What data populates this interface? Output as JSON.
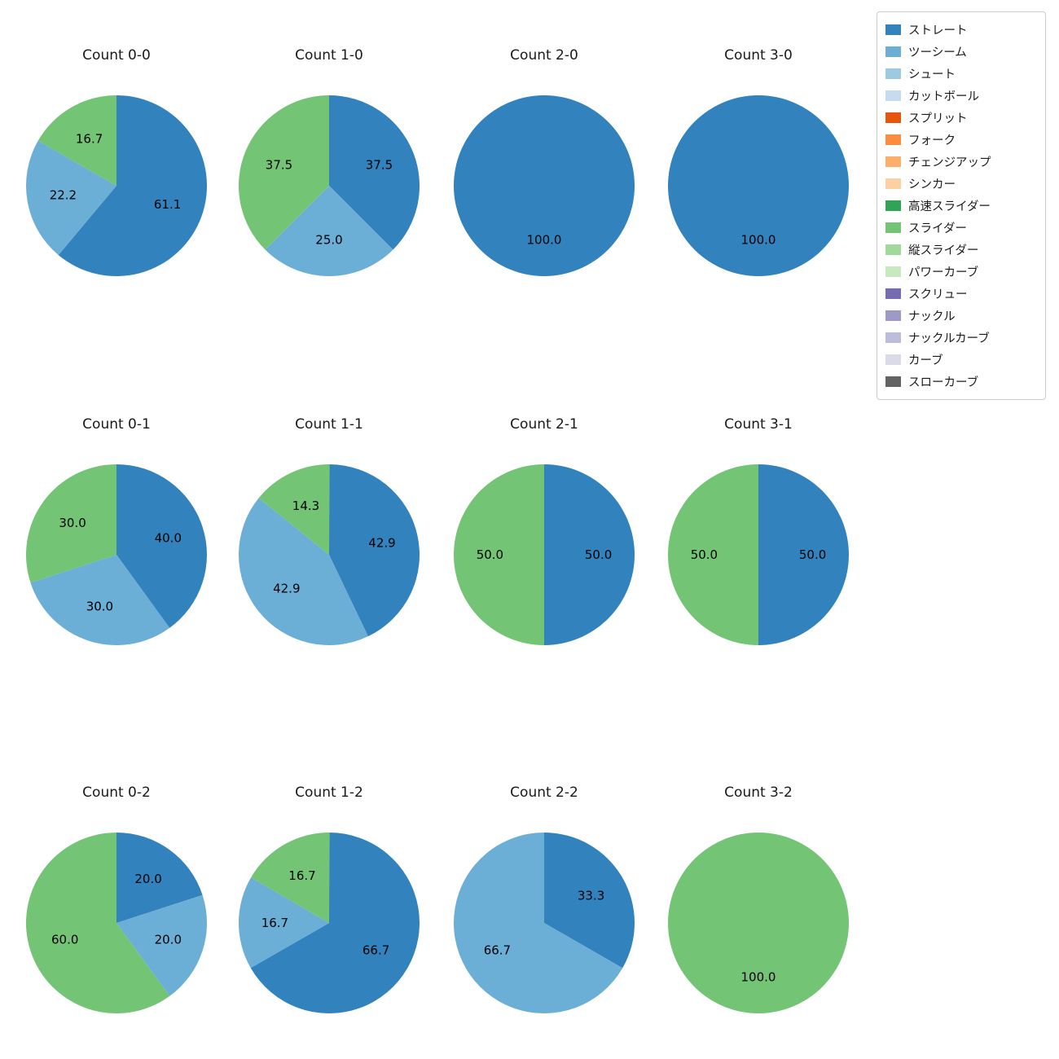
{
  "chart_data": {
    "type": "pie",
    "unit": "percent",
    "value_format": "one_decimal",
    "start_angle_deg": 90,
    "direction": "clockwise",
    "legend_position": "top-right",
    "legend": [
      {
        "label": "ストレート",
        "color": "#3182bd"
      },
      {
        "label": "ツーシーム",
        "color": "#6baed6"
      },
      {
        "label": "シュート",
        "color": "#9ecae1"
      },
      {
        "label": "カットボール",
        "color": "#c6dbef"
      },
      {
        "label": "スプリット",
        "color": "#e6550d"
      },
      {
        "label": "フォーク",
        "color": "#fd8d3c"
      },
      {
        "label": "チェンジアップ",
        "color": "#fdae6b"
      },
      {
        "label": "シンカー",
        "color": "#fdd0a2"
      },
      {
        "label": "高速スライダー",
        "color": "#31a354"
      },
      {
        "label": "スライダー",
        "color": "#74c476"
      },
      {
        "label": "縦スライダー",
        "color": "#a1d99b"
      },
      {
        "label": "パワーカーブ",
        "color": "#c7e9c0"
      },
      {
        "label": "スクリュー",
        "color": "#756bb1"
      },
      {
        "label": "ナックル",
        "color": "#9e9ac8"
      },
      {
        "label": "ナックルカーブ",
        "color": "#bcbddc"
      },
      {
        "label": "カーブ",
        "color": "#dadaeb"
      },
      {
        "label": "スローカーブ",
        "color": "#636363"
      }
    ],
    "charts": [
      {
        "title": "Count 0-0",
        "slices": [
          {
            "pitch": "ストレート",
            "value": 61.1
          },
          {
            "pitch": "ツーシーム",
            "value": 22.2
          },
          {
            "pitch": "スライダー",
            "value": 16.7
          }
        ]
      },
      {
        "title": "Count 1-0",
        "slices": [
          {
            "pitch": "ストレート",
            "value": 37.5
          },
          {
            "pitch": "ツーシーム",
            "value": 25.0
          },
          {
            "pitch": "スライダー",
            "value": 37.5
          }
        ]
      },
      {
        "title": "Count 2-0",
        "slices": [
          {
            "pitch": "ストレート",
            "value": 100.0
          }
        ]
      },
      {
        "title": "Count 3-0",
        "slices": [
          {
            "pitch": "ストレート",
            "value": 100.0
          }
        ]
      },
      {
        "title": "Count 0-1",
        "slices": [
          {
            "pitch": "ストレート",
            "value": 40.0
          },
          {
            "pitch": "ツーシーム",
            "value": 30.0
          },
          {
            "pitch": "スライダー",
            "value": 30.0
          }
        ]
      },
      {
        "title": "Count 1-1",
        "slices": [
          {
            "pitch": "ストレート",
            "value": 42.9
          },
          {
            "pitch": "ツーシーム",
            "value": 42.9
          },
          {
            "pitch": "スライダー",
            "value": 14.3
          }
        ]
      },
      {
        "title": "Count 2-1",
        "slices": [
          {
            "pitch": "ストレート",
            "value": 50.0
          },
          {
            "pitch": "スライダー",
            "value": 50.0
          }
        ]
      },
      {
        "title": "Count 3-1",
        "slices": [
          {
            "pitch": "ストレート",
            "value": 50.0
          },
          {
            "pitch": "スライダー",
            "value": 50.0
          }
        ]
      },
      {
        "title": "Count 0-2",
        "slices": [
          {
            "pitch": "ストレート",
            "value": 20.0
          },
          {
            "pitch": "ツーシーム",
            "value": 20.0
          },
          {
            "pitch": "スライダー",
            "value": 60.0
          }
        ]
      },
      {
        "title": "Count 1-2",
        "slices": [
          {
            "pitch": "ストレート",
            "value": 66.7
          },
          {
            "pitch": "ツーシーム",
            "value": 16.7
          },
          {
            "pitch": "スライダー",
            "value": 16.7
          }
        ]
      },
      {
        "title": "Count 2-2",
        "slices": [
          {
            "pitch": "ストレート",
            "value": 33.3
          },
          {
            "pitch": "ツーシーム",
            "value": 66.7
          }
        ]
      },
      {
        "title": "Count 3-2",
        "slices": [
          {
            "pitch": "スライダー",
            "value": 100.0
          }
        ]
      }
    ]
  }
}
